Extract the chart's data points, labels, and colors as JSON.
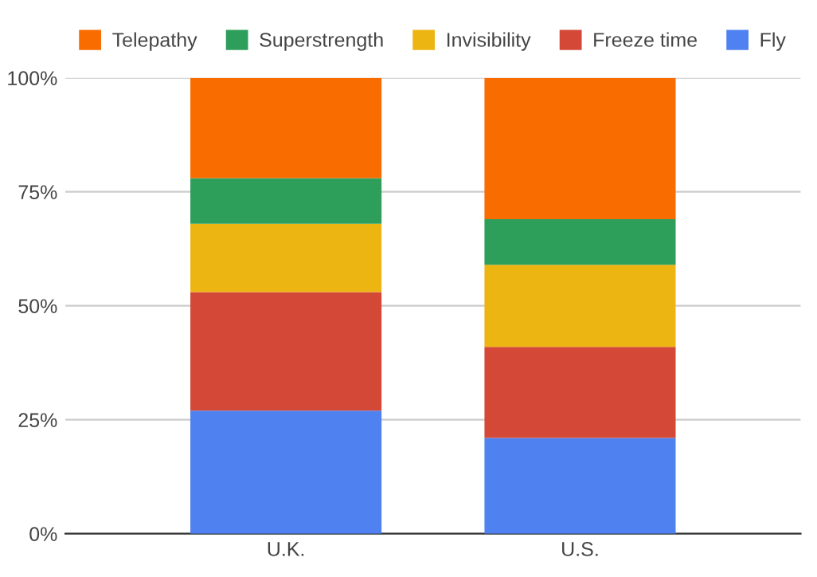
{
  "chart_data": {
    "type": "bar",
    "stacked": true,
    "categories": [
      "U.K.",
      "U.S."
    ],
    "series": [
      {
        "name": "Fly",
        "color": "#4f81f0",
        "values": [
          27,
          21
        ]
      },
      {
        "name": "Freeze time",
        "color": "#d34836",
        "values": [
          26,
          20
        ]
      },
      {
        "name": "Invisibility",
        "color": "#edb512",
        "values": [
          15,
          18
        ]
      },
      {
        "name": "Superstrength",
        "color": "#2e9e5b",
        "values": [
          10,
          10
        ]
      },
      {
        "name": "Telepathy",
        "color": "#f86c00",
        "values": [
          22,
          31
        ]
      }
    ],
    "ylim": [
      0,
      100
    ],
    "yticks": [
      {
        "value": 0,
        "label": "0%"
      },
      {
        "value": 25,
        "label": "25%"
      },
      {
        "value": 50,
        "label": "50%"
      },
      {
        "value": 75,
        "label": "75%"
      },
      {
        "value": 100,
        "label": "100%"
      }
    ],
    "grid": "y",
    "legend": "top"
  }
}
